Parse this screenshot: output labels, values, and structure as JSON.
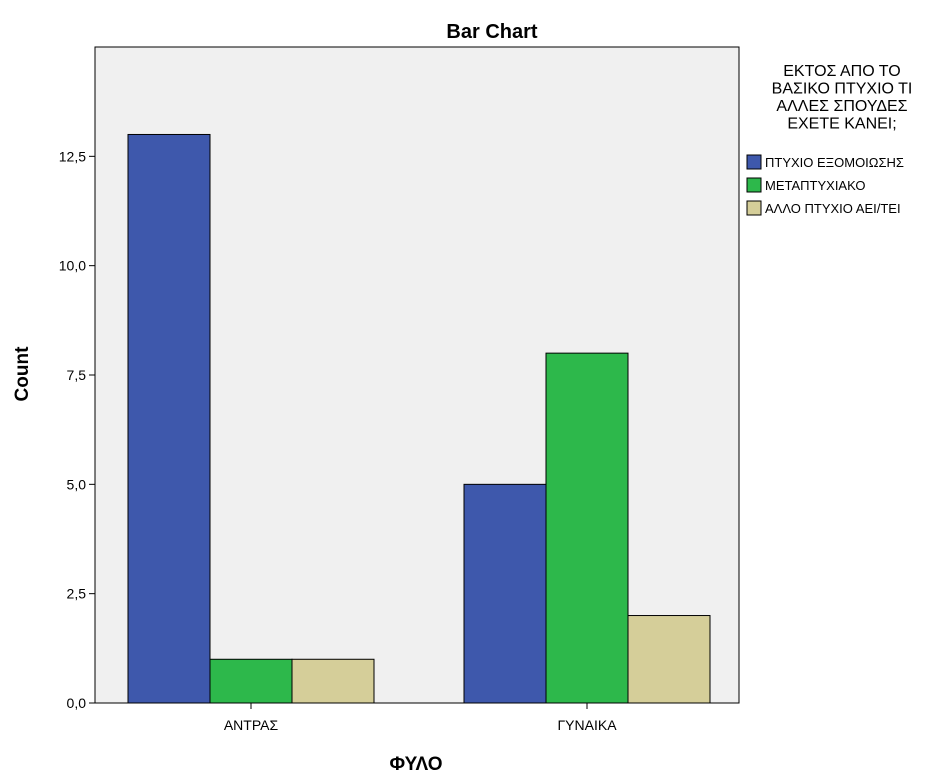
{
  "chart_data": {
    "type": "bar",
    "title": "Bar Chart",
    "xlabel": "ΦΥΛΟ",
    "ylabel": "Count",
    "categories": [
      "ΑΝΤΡΑΣ",
      "ΓΥΝΑΙΚΑ"
    ],
    "ylim": [
      0,
      15
    ],
    "yticks": [
      "0,0",
      "2,5",
      "5,0",
      "7,5",
      "10,0",
      "12,5"
    ],
    "grid": false,
    "legend": {
      "title_lines": [
        "ΕΚΤΟΣ ΑΠΟ ΤΟ",
        "ΒΑΣΙΚΟ ΠΤΥΧΙΟ ΤΙ",
        "ΑΛΛΕΣ ΣΠΟΥΔΕΣ",
        "ΕΧΕΤΕ ΚΑΝΕΙ;"
      ],
      "placement": "right"
    },
    "series": [
      {
        "name": "ΠΤΥΧΙΟ ΕΞΟΜΟΙΩΣΗΣ",
        "values": [
          13,
          5
        ],
        "color": "#3e58ac"
      },
      {
        "name": "ΜΕΤΑΠΤΥΧΙΑΚΟ",
        "values": [
          1,
          8
        ],
        "color": "#2db84b"
      },
      {
        "name": "ΑΛΛΟ ΠΤΥΧΙΟ ΑΕΙ/ΤΕΙ",
        "values": [
          1,
          2
        ],
        "color": "#d5ce99"
      }
    ],
    "plot_background": "#f0f0f0"
  }
}
